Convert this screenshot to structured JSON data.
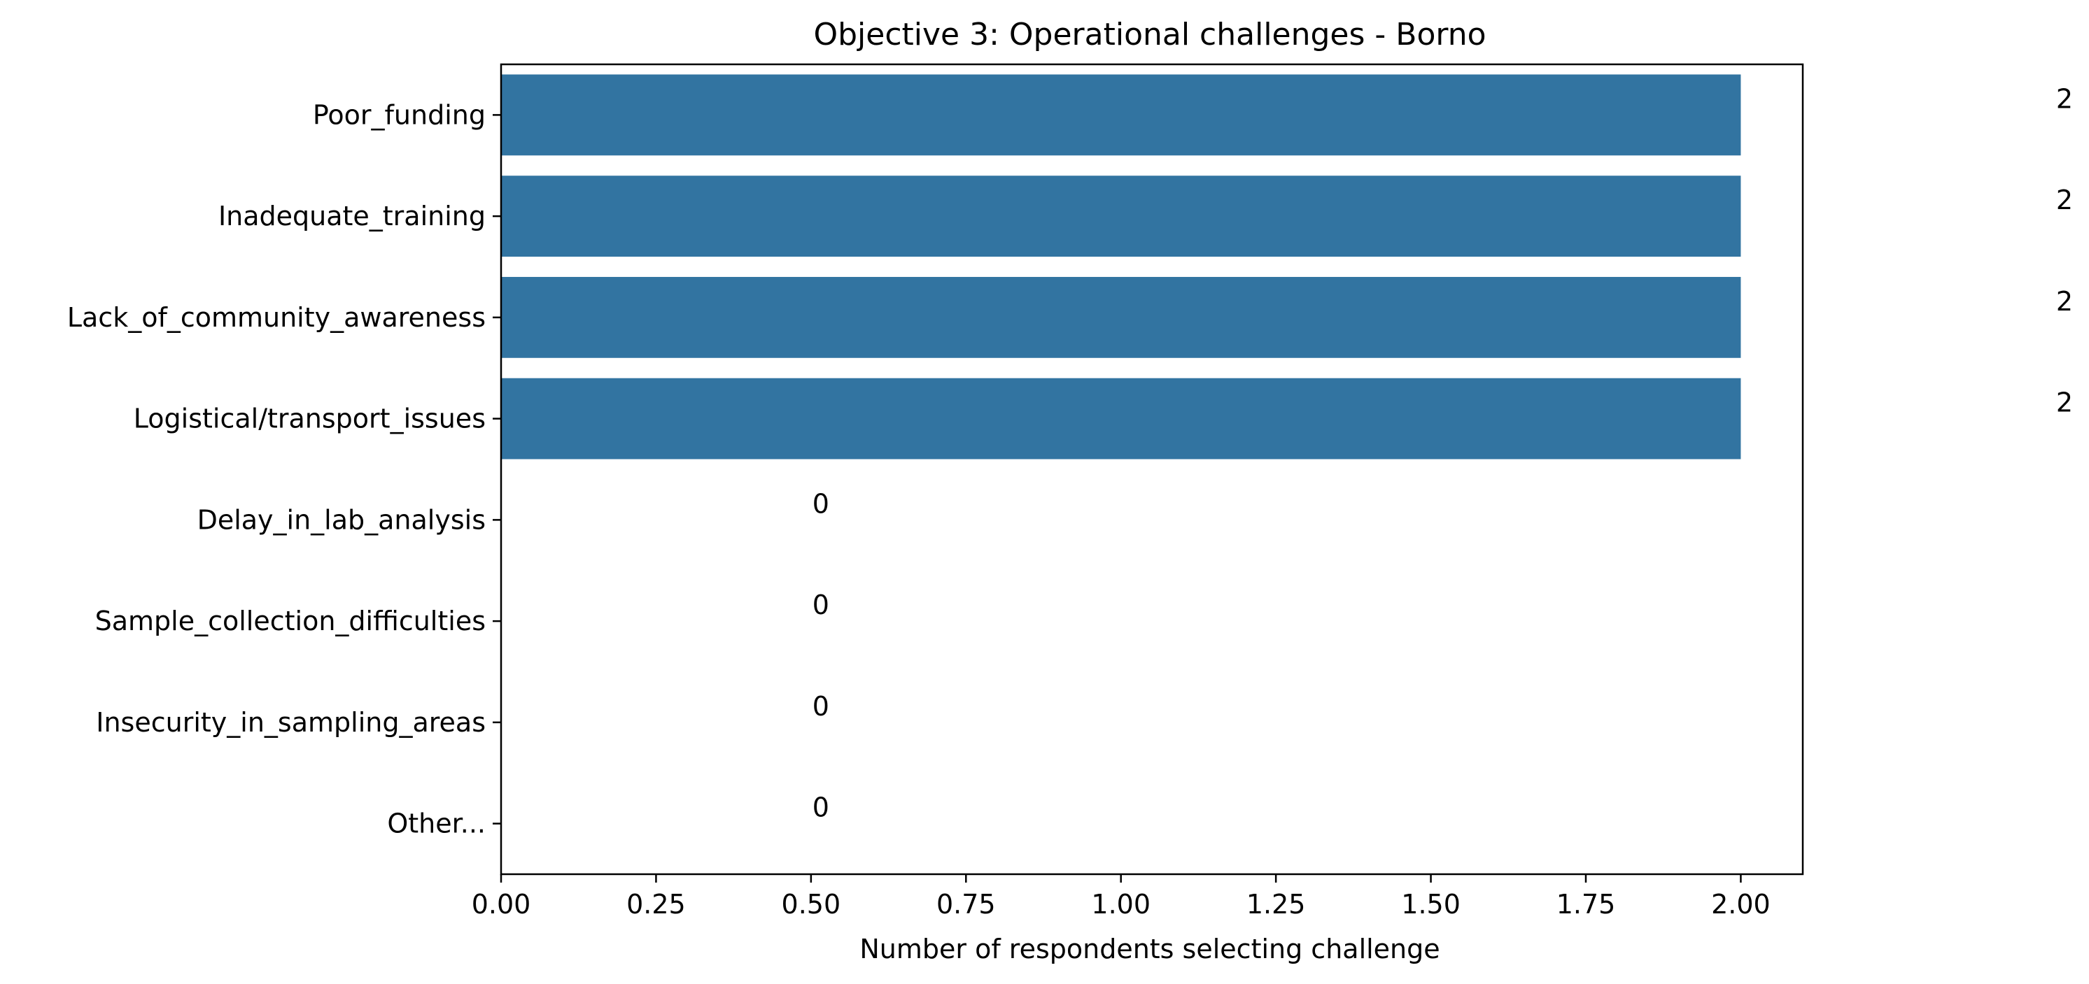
{
  "chart_data": {
    "type": "bar",
    "orientation": "horizontal",
    "title": "Objective 3: Operational challenges - Borno",
    "xlabel": "Number of respondents selecting challenge",
    "ylabel": "",
    "categories": [
      "Poor_funding",
      "Inadequate_training",
      "Lack_of_community_awareness",
      "Logistical/transport_issues",
      "Delay_in_lab_analysis",
      "Sample_collection_difficulties",
      "Insecurity_in_sampling_areas",
      "Other..."
    ],
    "values": [
      2,
      2,
      2,
      2,
      0,
      0,
      0,
      0
    ],
    "data_labels": [
      "2",
      "2",
      "2",
      "2",
      "0",
      "0",
      "0",
      "0"
    ],
    "xlim": [
      0,
      2.1
    ],
    "xticks": [
      "0.00",
      "0.25",
      "0.50",
      "0.75",
      "1.00",
      "1.25",
      "1.50",
      "1.75",
      "2.00"
    ],
    "bar_color": "#3274a1",
    "grid": false,
    "legend": "none"
  }
}
